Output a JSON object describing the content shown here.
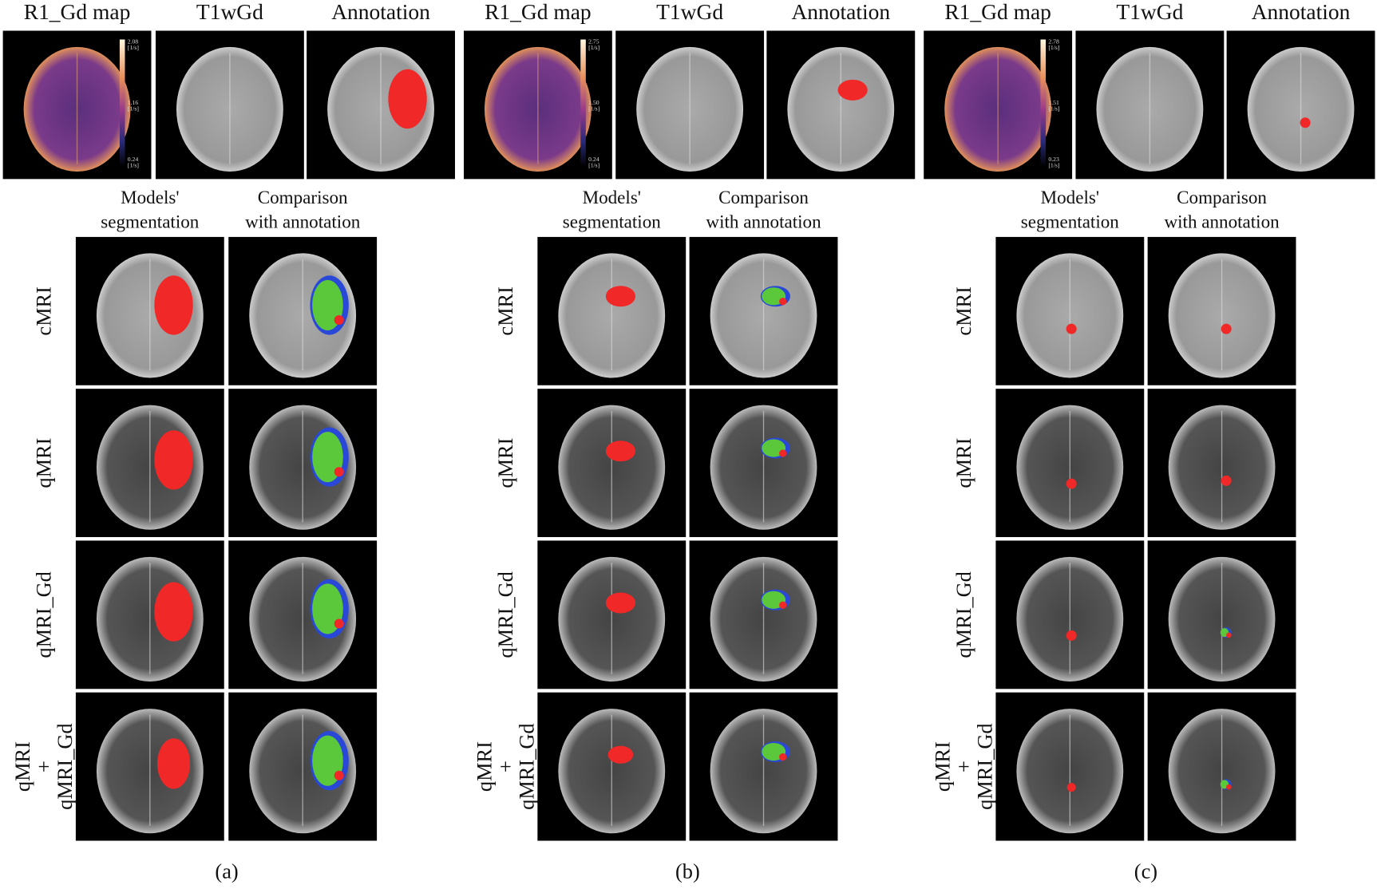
{
  "panels": [
    {
      "caption": "(a)",
      "top_labels": [
        "R1_Gd map",
        "T1wGd",
        "Annotation"
      ],
      "colorbar": {
        "ticks": [
          "2.08",
          "1.16",
          "0.24"
        ],
        "unit": "[1/s]"
      },
      "column_headers": [
        [
          "Models'",
          "segmentation"
        ],
        [
          "Comparison",
          "with annotation"
        ]
      ],
      "row_labels": [
        [
          "cMRI"
        ],
        [
          "qMRI"
        ],
        [
          "qMRI_Gd"
        ],
        [
          "qMRI",
          "+",
          "qMRI_Gd"
        ]
      ]
    },
    {
      "caption": "(b)",
      "top_labels": [
        "R1_Gd map",
        "T1wGd",
        "Annotation"
      ],
      "colorbar": {
        "ticks": [
          "2.75",
          "1.50",
          "0.24"
        ],
        "unit": "[1/s]"
      },
      "column_headers": [
        [
          "Models'",
          "segmentation"
        ],
        [
          "Comparison",
          "with annotation"
        ]
      ],
      "row_labels": [
        [
          "cMRI"
        ],
        [
          "qMRI"
        ],
        [
          "qMRI_Gd"
        ],
        [
          "qMRI",
          "+",
          "qMRI_Gd"
        ]
      ]
    },
    {
      "caption": "(c)",
      "top_labels": [
        "R1_Gd map",
        "T1wGd",
        "Annotation"
      ],
      "colorbar": {
        "ticks": [
          "2.78",
          "1.51",
          "0.23"
        ],
        "unit": "[1/s]"
      },
      "column_headers": [
        [
          "Models'",
          "segmentation"
        ],
        [
          "Comparison",
          "with annotation"
        ]
      ],
      "row_labels": [
        [
          "cMRI"
        ],
        [
          "qMRI"
        ],
        [
          "qMRI_Gd"
        ],
        [
          "qMRI",
          "+",
          "qMRI_Gd"
        ]
      ]
    }
  ]
}
